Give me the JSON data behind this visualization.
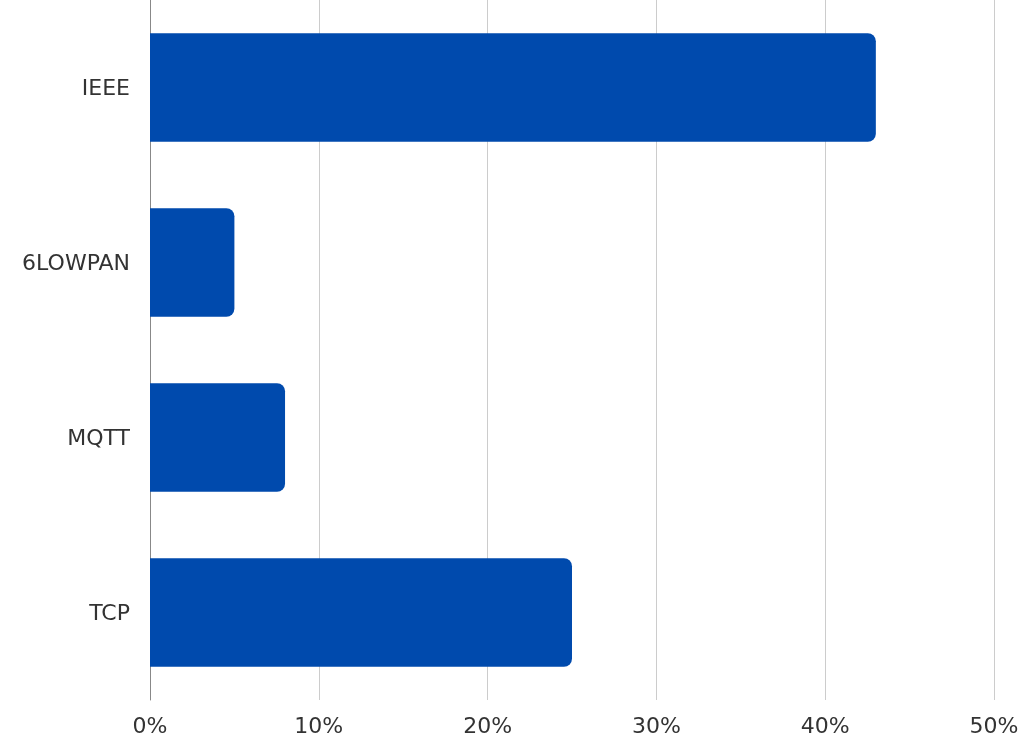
{
  "chart_data": {
    "type": "bar",
    "orientation": "horizontal",
    "categories": [
      "IEEE",
      "6LOWPAN",
      "MQTT",
      "TCP"
    ],
    "values": [
      43,
      5,
      8,
      25
    ],
    "color": "#004aad",
    "xlim": [
      0,
      50
    ],
    "xticks": [
      {
        "value": 0,
        "label": "0%"
      },
      {
        "value": 10,
        "label": "10%"
      },
      {
        "value": 20,
        "label": "20%"
      },
      {
        "value": 30,
        "label": "30%"
      },
      {
        "value": 40,
        "label": "40%"
      },
      {
        "value": 50,
        "label": "50%"
      }
    ],
    "grid": "x"
  }
}
